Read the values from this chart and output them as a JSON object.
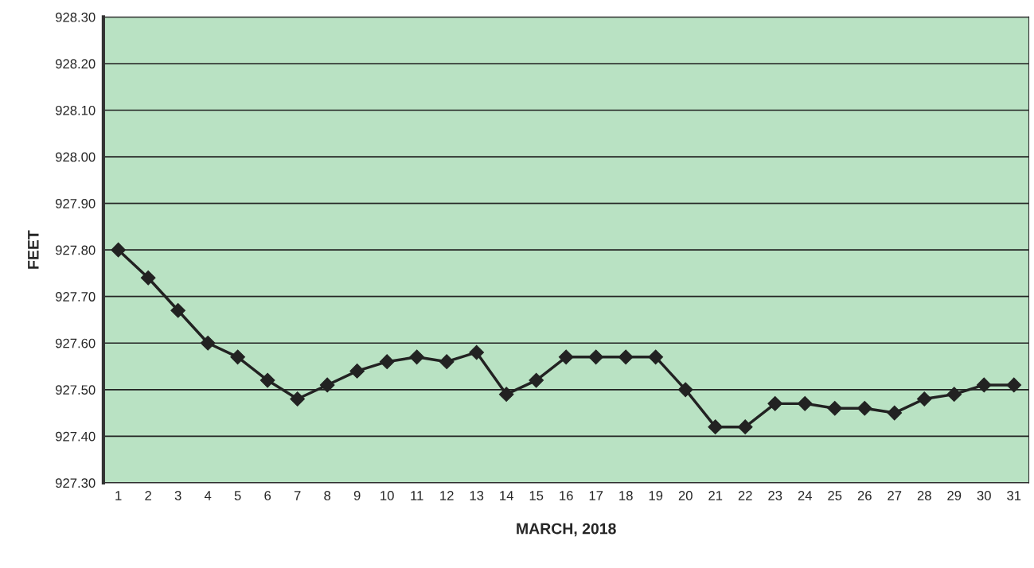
{
  "chart_data": {
    "type": "line",
    "xlabel": "MARCH, 2018",
    "ylabel": "FEET",
    "categories": [
      "1",
      "2",
      "3",
      "4",
      "5",
      "6",
      "7",
      "8",
      "9",
      "10",
      "11",
      "12",
      "13",
      "14",
      "15",
      "16",
      "17",
      "18",
      "19",
      "20",
      "21",
      "22",
      "23",
      "24",
      "25",
      "26",
      "27",
      "28",
      "29",
      "30",
      "31"
    ],
    "series": [
      {
        "color": "#222222",
        "values": [
          927.8,
          927.74,
          927.67,
          927.6,
          927.57,
          927.52,
          927.48,
          927.51,
          927.54,
          927.56,
          927.57,
          927.56,
          927.58,
          927.49,
          927.52,
          927.57,
          927.57,
          927.57,
          927.57,
          927.5,
          927.42,
          927.42,
          927.47,
          927.47,
          927.46,
          927.46,
          927.45,
          927.48,
          927.49,
          927.51,
          927.51
        ]
      }
    ],
    "ylim": [
      927.3,
      928.3
    ],
    "yticks": [
      {
        "value": 927.3,
        "label": "927.30"
      },
      {
        "value": 927.4,
        "label": "927.40"
      },
      {
        "value": 927.5,
        "label": "927.50"
      },
      {
        "value": 927.6,
        "label": "927.60"
      },
      {
        "value": 927.7,
        "label": "927.70"
      },
      {
        "value": 927.8,
        "label": "927.80"
      },
      {
        "value": 927.9,
        "label": "927.90"
      },
      {
        "value": 928.0,
        "label": "928.00"
      },
      {
        "value": 928.1,
        "label": "928.10"
      },
      {
        "value": 928.2,
        "label": "928.20"
      },
      {
        "value": 928.3,
        "label": "928.30"
      }
    ],
    "grid": "y",
    "marker": "diamond",
    "line_style": "solid"
  }
}
